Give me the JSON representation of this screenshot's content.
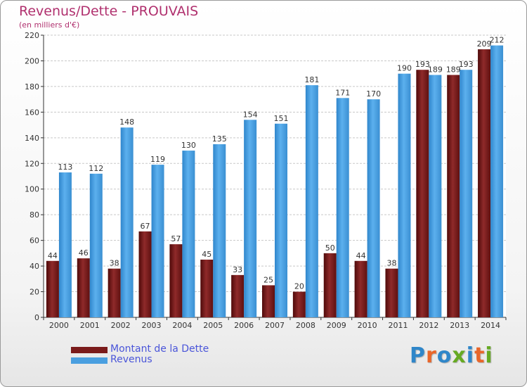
{
  "header": {
    "title": "Revenus/Dette - PROUVAIS",
    "subtitle": "(en milliers d'€)"
  },
  "legend": {
    "items": [
      {
        "label": "Montant de la Dette",
        "color": "#7a1b1b"
      },
      {
        "label": "Revenus",
        "color": "#4a9fe0"
      }
    ]
  },
  "logo": {
    "text": "Proxiti",
    "letter_colors": [
      "#2f86c9",
      "#e9662a",
      "#2f86c9",
      "#66aa22",
      "#2f86c9",
      "#e9662a",
      "#66aa22"
    ]
  },
  "chart_data": {
    "type": "bar",
    "title": "Revenus/Dette - PROUVAIS",
    "subtitle": "(en milliers d'€)",
    "xlabel": "",
    "ylabel": "",
    "ylim": [
      0,
      220
    ],
    "yticks": [
      0,
      20,
      40,
      60,
      80,
      100,
      120,
      140,
      160,
      180,
      200,
      220
    ],
    "grid": true,
    "legend_position": "bottom-left",
    "categories": [
      "2000",
      "2001",
      "2002",
      "2003",
      "2004",
      "2005",
      "2006",
      "2007",
      "2008",
      "2009",
      "2010",
      "2011",
      "2012",
      "2013",
      "2014"
    ],
    "series": [
      {
        "name": "Montant de la Dette",
        "color": "#7a1b1b",
        "values": [
          44,
          46,
          38,
          67,
          57,
          45,
          33,
          25,
          20,
          50,
          44,
          38,
          193,
          189,
          209
        ]
      },
      {
        "name": "Revenus",
        "color": "#4a9fe0",
        "values": [
          113,
          112,
          148,
          119,
          130,
          135,
          154,
          151,
          181,
          171,
          170,
          190,
          189,
          193,
          212
        ]
      }
    ]
  }
}
